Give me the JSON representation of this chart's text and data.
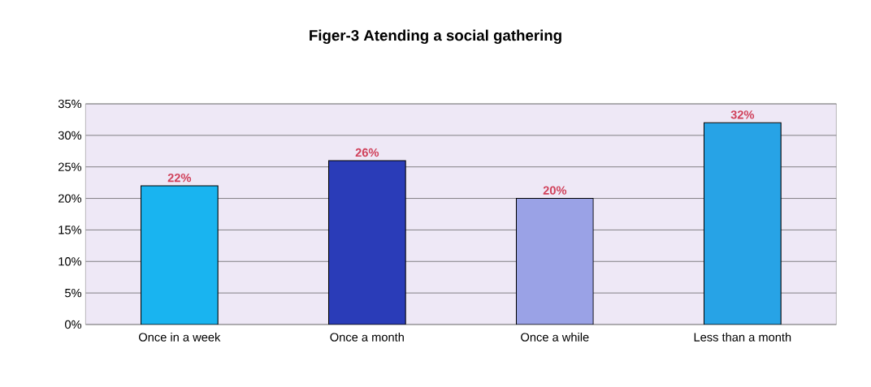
{
  "chart_data": {
    "type": "bar",
    "title": "Figer-3 Atending a social gathering",
    "categories": [
      "Once in a week",
      "Once a month",
      "Once a while",
      "Less than a month"
    ],
    "values": [
      22,
      26,
      20,
      32
    ],
    "colors": [
      "#19b4f0",
      "#2a3cb8",
      "#9aa2e6",
      "#27a3e6"
    ],
    "value_labels": [
      "22%",
      "26%",
      "20%",
      "32%"
    ],
    "ylim": [
      0,
      35
    ],
    "yticks": [
      {
        "value": 0,
        "label": "0%"
      },
      {
        "value": 5,
        "label": "5%"
      },
      {
        "value": 10,
        "label": "10%"
      },
      {
        "value": 15,
        "label": "15%"
      },
      {
        "value": 20,
        "label": "20%"
      },
      {
        "value": 25,
        "label": "25%"
      },
      {
        "value": 30,
        "label": "30%"
      },
      {
        "value": 35,
        "label": "35%"
      }
    ],
    "grid": "y"
  }
}
